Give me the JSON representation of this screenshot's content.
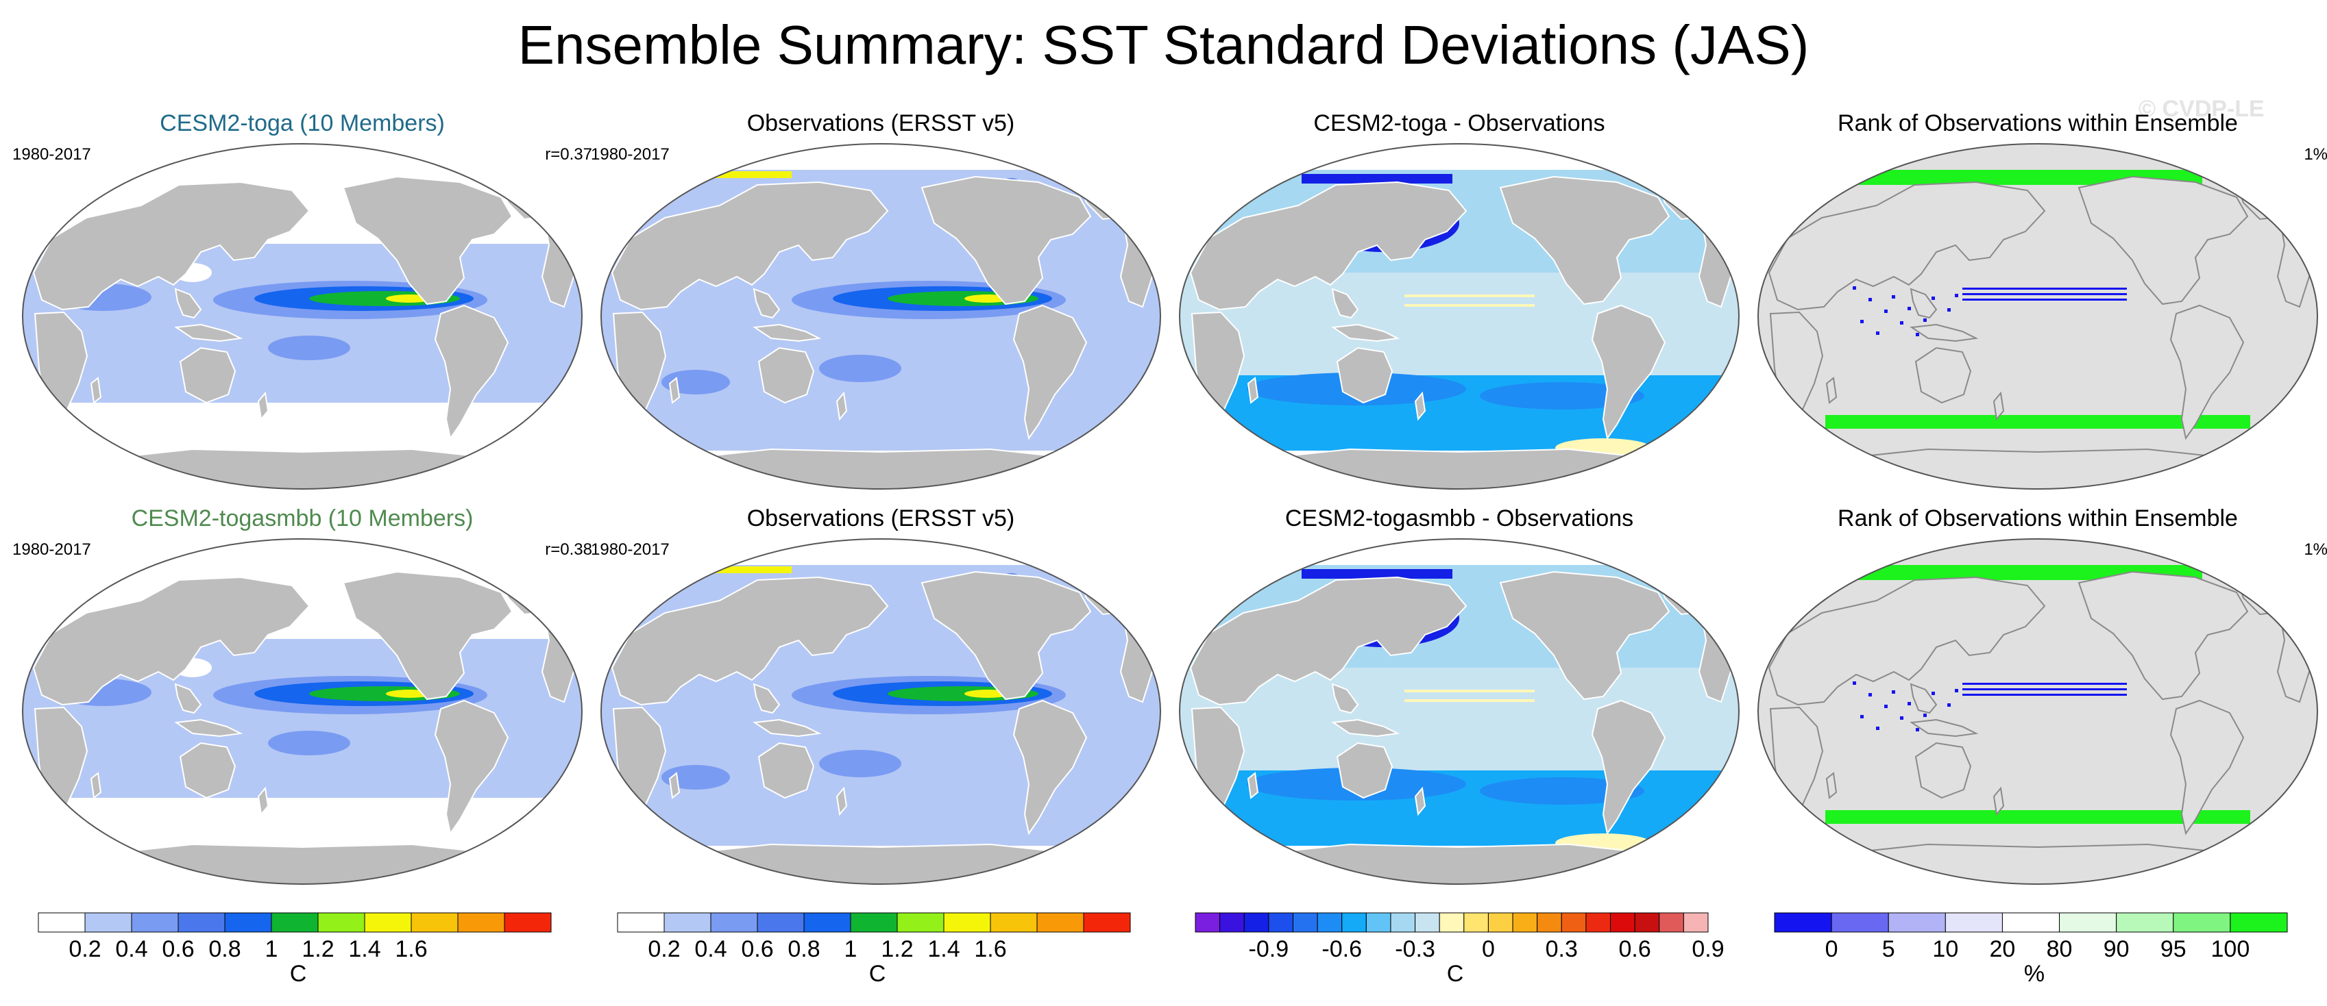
{
  "title": "Ensemble Summary: SST Standard Deviations (JAS)",
  "watermark": "© CVDP-LE",
  "panels": [
    {
      "title": "CESM2-toga (10 Members)",
      "title_color": "#1f6a8a",
      "left": "1980-2017",
      "right": "r=0.37",
      "kind": "model"
    },
    {
      "title": "Observations (ERSST v5)",
      "title_color": "#000000",
      "left": "1980-2017",
      "right": "",
      "kind": "obs"
    },
    {
      "title": "CESM2-toga - Observations",
      "title_color": "#000000",
      "left": "",
      "right": "",
      "kind": "diff"
    },
    {
      "title": "Rank of Observations within Ensemble",
      "title_color": "#000000",
      "left": "",
      "right": "1%",
      "kind": "rank"
    },
    {
      "title": "CESM2-togasmbb (10 Members)",
      "title_color": "#4f8a4f",
      "left": "1980-2017",
      "right": "r=0.38",
      "kind": "model"
    },
    {
      "title": "Observations (ERSST v5)",
      "title_color": "#000000",
      "left": "1980-2017",
      "right": "",
      "kind": "obs"
    },
    {
      "title": "CESM2-togasmbb - Observations",
      "title_color": "#000000",
      "left": "",
      "right": "",
      "kind": "diff"
    },
    {
      "title": "Rank of Observations within Ensemble",
      "title_color": "#000000",
      "left": "",
      "right": "1%",
      "kind": "rank"
    }
  ],
  "colorbars": [
    {
      "unit": "C",
      "colors": [
        "#ffffff",
        "#b4c8f5",
        "#7a9bf2",
        "#4a78ec",
        "#1565ee",
        "#0fb530",
        "#93f018",
        "#f5f50a",
        "#f8c40a",
        "#f89a08",
        "#f4260a"
      ],
      "labels": [
        "0.2",
        "0.4",
        "0.6",
        "0.8",
        "1",
        "1.2",
        "1.4",
        "1.6"
      ]
    },
    {
      "unit": "C",
      "colors": [
        "#ffffff",
        "#b4c8f5",
        "#7a9bf2",
        "#4a78ec",
        "#1565ee",
        "#0fb530",
        "#93f018",
        "#f5f50a",
        "#f8c40a",
        "#f89a08",
        "#f4260a"
      ],
      "labels": [
        "0.2",
        "0.4",
        "0.6",
        "0.8",
        "1",
        "1.2",
        "1.4",
        "1.6"
      ]
    },
    {
      "unit": "C",
      "colors": [
        "#7a1ee0",
        "#3a12e0",
        "#1420e6",
        "#1c4fec",
        "#2572f0",
        "#1e8cf5",
        "#14aaf8",
        "#62c4f6",
        "#a6d8f1",
        "#c8e4f1",
        "#fff8b8",
        "#ffe470",
        "#fcd042",
        "#f8ae16",
        "#f48a10",
        "#f06014",
        "#ec2a12",
        "#dc0a0a",
        "#c81010",
        "#e05a5a",
        "#f6b4b4"
      ],
      "labels": [
        "-0.9",
        "-0.6",
        "-0.3",
        "0",
        "0.3",
        "0.6",
        "0.9"
      ]
    },
    {
      "unit": "%",
      "colors": [
        "#1414f0",
        "#6868f2",
        "#b2b2f6",
        "#e4e4fa",
        "#ffffff",
        "#e4fae4",
        "#b8f8b8",
        "#80f480",
        "#1cf21c"
      ],
      "labels": [
        "0",
        "5",
        "10",
        "20",
        "80",
        "90",
        "95",
        "100"
      ]
    }
  ]
}
